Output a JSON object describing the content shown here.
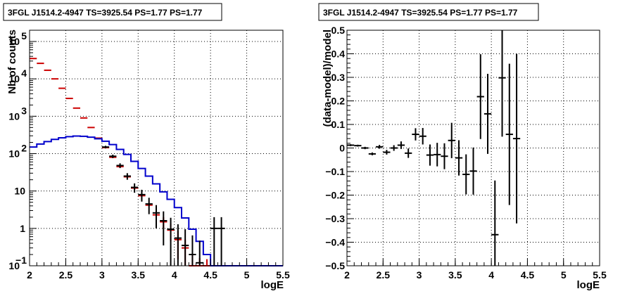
{
  "chart_data": [
    {
      "type": "line",
      "title": "3FGL J1514.2-4947 TS=3925.54 PS=1.77 PS=1.77",
      "xlabel": "logE",
      "ylabel": "Nb of counts",
      "xlim": [
        2,
        5.5
      ],
      "ylim": [
        0.1,
        200000
      ],
      "yscale": "log",
      "grid": true,
      "x_ticks": [
        "2",
        "2.5",
        "3",
        "3.5",
        "4",
        "4.5",
        "5",
        "5.5"
      ],
      "y_ticks": [
        {
          "value": 0.1,
          "base": "10",
          "exp": "−1"
        },
        {
          "value": 1,
          "base": "1",
          "exp": ""
        },
        {
          "value": 10,
          "base": "10",
          "exp": ""
        },
        {
          "value": 100,
          "base": "10",
          "exp": "2"
        },
        {
          "value": 1000,
          "base": "10",
          "exp": "3"
        },
        {
          "value": 10000,
          "base": "10",
          "exp": "4"
        },
        {
          "value": 100000,
          "base": "10",
          "exp": "5"
        }
      ],
      "series": [
        {
          "color": "#cc0000",
          "style": "errorbar",
          "x": [
            2.05,
            2.15,
            2.25,
            2.35,
            2.45,
            2.55,
            2.65,
            2.75,
            2.85,
            2.95,
            3.05,
            3.15,
            3.25,
            3.35,
            3.45,
            3.55,
            3.65,
            3.75,
            3.85,
            3.95,
            4.05,
            4.15,
            4.25,
            4.35,
            4.45
          ],
          "y": [
            35000,
            26000,
            17000,
            10000,
            5600,
            3000,
            1650,
            900,
            500,
            260,
            145,
            80,
            45,
            24,
            12,
            7.5,
            4.2,
            2.3,
            1.5,
            0.9,
            0.5,
            0.3,
            0.1,
            0.1,
            0.1
          ],
          "yerr": [
            0,
            0,
            0,
            0,
            0,
            0,
            0,
            0,
            0,
            0,
            0,
            0,
            0,
            0,
            0,
            0,
            0,
            0.4,
            0.5,
            0.45,
            0.35,
            0.2,
            0.1,
            0.06,
            0.05
          ]
        },
        {
          "color": "#0000cc",
          "style": "step",
          "x": [
            2.05,
            2.15,
            2.25,
            2.35,
            2.45,
            2.55,
            2.65,
            2.75,
            2.85,
            2.95,
            3.05,
            3.15,
            3.25,
            3.35,
            3.45,
            3.55,
            3.65,
            3.75,
            3.85,
            3.95,
            4.05,
            4.15,
            4.25,
            4.35,
            4.45,
            4.55,
            4.65,
            4.75,
            4.85,
            4.95,
            5.05,
            5.15,
            5.25,
            5.35,
            5.45
          ],
          "y": [
            150,
            180,
            210,
            240,
            265,
            285,
            295,
            290,
            275,
            250,
            215,
            175,
            130,
            95,
            62,
            40,
            25,
            15.5,
            9.5,
            6.0,
            3.6,
            1.9,
            0.95,
            0.45,
            0.2,
            0.1,
            0.1,
            0.1,
            0.1,
            0.1,
            0.1,
            0.1,
            0.1,
            0.1,
            0.1
          ]
        },
        {
          "color": "#000000",
          "style": "errorbar",
          "x": [
            3.05,
            3.15,
            3.25,
            3.35,
            3.45,
            3.55,
            3.65,
            3.75,
            3.85,
            3.95,
            4.05,
            4.15,
            4.25,
            4.35,
            4.55,
            4.65
          ],
          "y": [
            150,
            85,
            48,
            25,
            12.5,
            8,
            4.5,
            2.6,
            1.6,
            0.95,
            0.55,
            0.35,
            0.2,
            0.12,
            1.0,
            1.0
          ],
          "yerr": [
            12,
            9,
            7,
            5,
            3.5,
            2.8,
            2.1,
            1.6,
            1.25,
            0.97,
            0.74,
            0.6,
            0.45,
            0.35,
            1.0,
            1.0
          ]
        }
      ]
    },
    {
      "type": "scatter",
      "title": "3FGL J1514.2-4947 TS=3925.54 PS=1.77 PS=1.77",
      "xlabel": "logE",
      "ylabel": "(data-model)/model",
      "xlim": [
        2,
        5.5
      ],
      "ylim": [
        -0.5,
        0.5
      ],
      "grid": true,
      "x_ticks": [
        "2",
        "2.5",
        "3",
        "3.5",
        "4",
        "4.5",
        "5",
        "5.5"
      ],
      "y_ticks": [
        "−0.5",
        "−0.4",
        "−0.3",
        "−0.2",
        "−0.1",
        "0",
        "0.1",
        "0.2",
        "0.3",
        "0.4",
        "0.5"
      ],
      "series": [
        {
          "color": "#000000",
          "x": [
            2.05,
            2.15,
            2.25,
            2.35,
            2.45,
            2.55,
            2.65,
            2.75,
            2.85,
            2.95,
            3.05,
            3.15,
            3.25,
            3.35,
            3.45,
            3.55,
            3.65,
            3.75,
            3.85,
            3.95,
            4.05,
            4.15,
            4.25,
            4.35
          ],
          "y": [
            0.012,
            0.01,
            0.0,
            -0.025,
            0.005,
            -0.018,
            0.0,
            0.012,
            -0.022,
            0.058,
            0.05,
            -0.03,
            -0.028,
            -0.035,
            0.032,
            -0.042,
            -0.112,
            -0.098,
            0.218,
            0.145,
            -0.368,
            0.298,
            0.058,
            0.04
          ],
          "yerr": [
            0.004,
            0.004,
            0.005,
            0.006,
            0.008,
            0.01,
            0.012,
            0.016,
            0.02,
            0.026,
            0.035,
            0.045,
            0.05,
            0.055,
            0.075,
            0.075,
            0.085,
            0.1,
            0.18,
            0.17,
            0.23,
            0.25,
            0.3,
            0.36
          ]
        }
      ]
    }
  ]
}
